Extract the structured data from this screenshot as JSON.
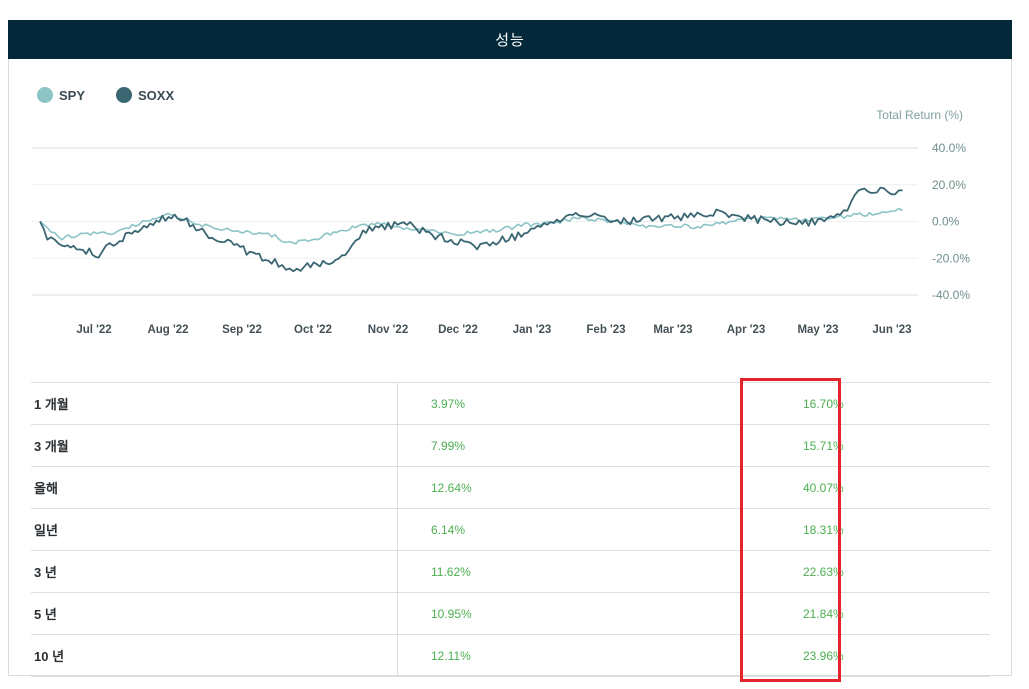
{
  "header": {
    "title": "성능"
  },
  "legend": [
    {
      "name": "SPY",
      "color": "#8cc4c6"
    },
    {
      "name": "SOXX",
      "color": "#3a6672"
    }
  ],
  "chart_data": {
    "type": "line",
    "ylabel": "Total Return (%)",
    "y_ticks": [
      "40.0%",
      "20.0%",
      "0.0%",
      "-20.0%",
      "-40.0%"
    ],
    "ylim": [
      -40,
      40
    ],
    "x_ticks": [
      "Jul '22",
      "Aug '22",
      "Sep '22",
      "Oct '22",
      "Nov '22",
      "Dec '22",
      "Jan '23",
      "Feb '23",
      "Mar '23",
      "Apr '23",
      "May '23",
      "Jun '23"
    ],
    "grid": true,
    "legend_position": "top-left",
    "series": [
      {
        "name": "SPY",
        "color": "#8cc4c6",
        "points": [
          [
            0,
            0
          ],
          [
            0.15,
            -5
          ],
          [
            0.3,
            -9
          ],
          [
            0.6,
            -7
          ],
          [
            1.0,
            -6
          ],
          [
            1.3,
            -2
          ],
          [
            1.5,
            1
          ],
          [
            1.75,
            4
          ],
          [
            2.0,
            1
          ],
          [
            2.3,
            -3
          ],
          [
            2.6,
            -5
          ],
          [
            2.9,
            -6
          ],
          [
            3.2,
            -8
          ],
          [
            3.4,
            -12
          ],
          [
            3.7,
            -10
          ],
          [
            4.0,
            -6
          ],
          [
            4.3,
            -3
          ],
          [
            4.6,
            -1
          ],
          [
            5.0,
            -4
          ],
          [
            5.3,
            -4
          ],
          [
            5.6,
            -7
          ],
          [
            6.0,
            -6
          ],
          [
            6.3,
            -4
          ],
          [
            6.6,
            -2
          ],
          [
            7.0,
            -1
          ],
          [
            7.3,
            2
          ],
          [
            7.6,
            1
          ],
          [
            8.0,
            -1
          ],
          [
            8.3,
            -3
          ],
          [
            8.6,
            -2
          ],
          [
            9.0,
            -3
          ],
          [
            9.3,
            -1
          ],
          [
            9.6,
            1
          ],
          [
            10.0,
            2
          ],
          [
            10.3,
            1
          ],
          [
            10.6,
            1
          ],
          [
            11.0,
            3
          ],
          [
            11.3,
            4
          ],
          [
            11.6,
            6
          ],
          [
            11.75,
            6
          ]
        ]
      },
      {
        "name": "SOXX",
        "color": "#3a6672",
        "points": [
          [
            0,
            0
          ],
          [
            0.1,
            -8
          ],
          [
            0.25,
            -13
          ],
          [
            0.5,
            -14
          ],
          [
            0.8,
            -18
          ],
          [
            1.0,
            -12
          ],
          [
            1.25,
            -6
          ],
          [
            1.5,
            -1
          ],
          [
            1.75,
            3
          ],
          [
            2.0,
            0
          ],
          [
            2.3,
            -8
          ],
          [
            2.6,
            -12
          ],
          [
            2.9,
            -18
          ],
          [
            3.2,
            -22
          ],
          [
            3.4,
            -27
          ],
          [
            3.6,
            -25
          ],
          [
            3.9,
            -22
          ],
          [
            4.2,
            -17
          ],
          [
            4.4,
            -5
          ],
          [
            4.7,
            -3
          ],
          [
            5.0,
            -1
          ],
          [
            5.3,
            -7
          ],
          [
            5.6,
            -10
          ],
          [
            6.0,
            -14
          ],
          [
            6.3,
            -10
          ],
          [
            6.6,
            -7
          ],
          [
            7.0,
            0
          ],
          [
            7.3,
            5
          ],
          [
            7.6,
            2
          ],
          [
            8.0,
            0
          ],
          [
            8.3,
            1
          ],
          [
            8.6,
            2
          ],
          [
            9.0,
            4
          ],
          [
            9.3,
            5
          ],
          [
            9.6,
            2
          ],
          [
            10.0,
            0
          ],
          [
            10.3,
            -1
          ],
          [
            10.6,
            0
          ],
          [
            10.9,
            3
          ],
          [
            11.0,
            7
          ],
          [
            11.15,
            18
          ],
          [
            11.4,
            17
          ],
          [
            11.6,
            15
          ],
          [
            11.75,
            17
          ]
        ]
      }
    ]
  },
  "table": {
    "rows": [
      {
        "label": "1 개월",
        "spy": "3.97%",
        "soxx": "16.70%"
      },
      {
        "label": "3 개월",
        "spy": "7.99%",
        "soxx": "15.71%"
      },
      {
        "label": "올해",
        "spy": "12.64%",
        "soxx": "40.07%"
      },
      {
        "label": "일년",
        "spy": "6.14%",
        "soxx": "18.31%"
      },
      {
        "label": "3 년",
        "spy": "11.62%",
        "soxx": "22.63%"
      },
      {
        "label": "5 년",
        "spy": "10.95%",
        "soxx": "21.84%"
      },
      {
        "label": "10 년",
        "spy": "12.11%",
        "soxx": "23.96%"
      }
    ]
  },
  "colors": {
    "header_bg": "#02283a",
    "positive": "#4caf50",
    "highlight": "#e4232b"
  }
}
